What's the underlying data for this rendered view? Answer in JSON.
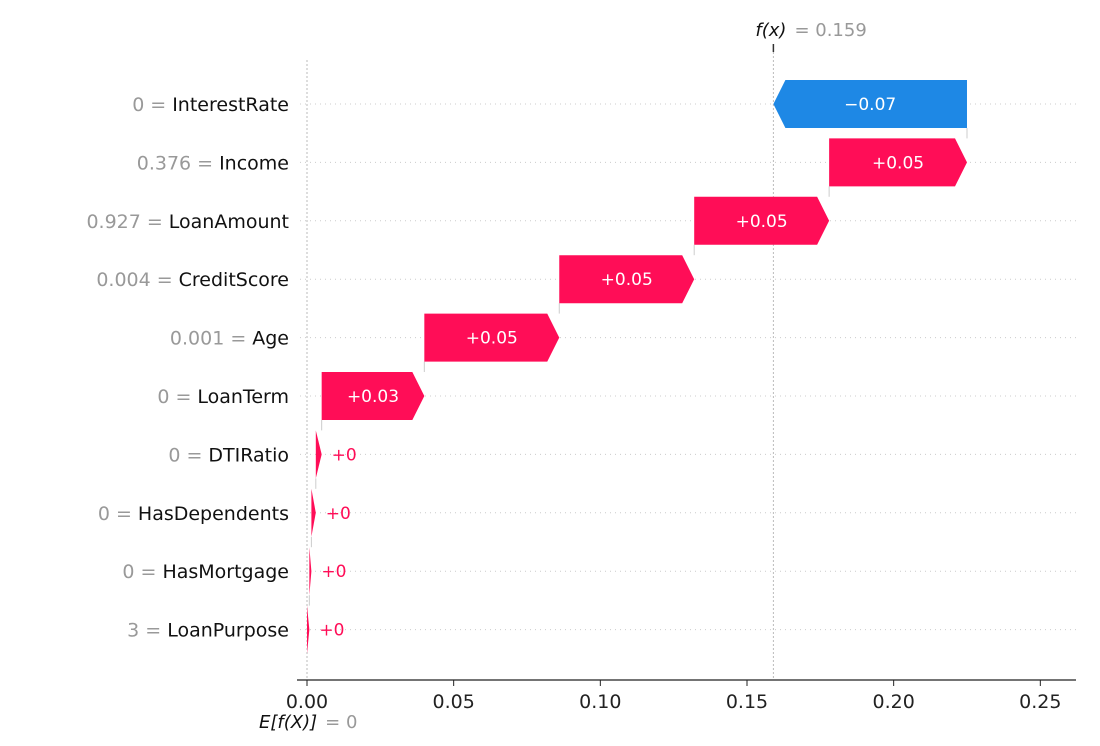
{
  "chart_data": {
    "type": "waterfall",
    "base_value": 0,
    "base_label": "E[f(X)]",
    "base_value_text": "= 0",
    "output_value": 0.159,
    "output_label": "f(x)",
    "output_value_text": "= 0.159",
    "xlim": [
      0,
      0.262
    ],
    "xticks": [
      0.0,
      0.05,
      0.1,
      0.15,
      0.2,
      0.25
    ],
    "xtick_labels": [
      "0.00",
      "0.05",
      "0.10",
      "0.15",
      "0.20",
      "0.25"
    ],
    "colors": {
      "positive": "#ff0d57",
      "negative": "#1e88e5",
      "feature_value": "#999999",
      "feature_name": "#111111",
      "grid": "#cccccc"
    },
    "features": [
      {
        "value": "0",
        "name": "InterestRate",
        "start": 0.225,
        "end": 0.159,
        "label": "−0.07"
      },
      {
        "value": "0.376",
        "name": "Income",
        "start": 0.178,
        "end": 0.225,
        "label": "+0.05"
      },
      {
        "value": "0.927",
        "name": "LoanAmount",
        "start": 0.132,
        "end": 0.178,
        "label": "+0.05"
      },
      {
        "value": "0.004",
        "name": "CreditScore",
        "start": 0.086,
        "end": 0.132,
        "label": "+0.05"
      },
      {
        "value": "0.001",
        "name": "Age",
        "start": 0.04,
        "end": 0.086,
        "label": "+0.05"
      },
      {
        "value": "0",
        "name": "LoanTerm",
        "start": 0.005,
        "end": 0.04,
        "label": "+0.03"
      },
      {
        "value": "0",
        "name": "DTIRatio",
        "start": 0.003,
        "end": 0.005,
        "label": "+0"
      },
      {
        "value": "0",
        "name": "HasDependents",
        "start": 0.0015,
        "end": 0.003,
        "label": "+0"
      },
      {
        "value": "0",
        "name": "HasMortgage",
        "start": 0.0008,
        "end": 0.0015,
        "label": "+0"
      },
      {
        "value": "3",
        "name": "LoanPurpose",
        "start": 0.0,
        "end": 0.0008,
        "label": "+0"
      }
    ]
  }
}
